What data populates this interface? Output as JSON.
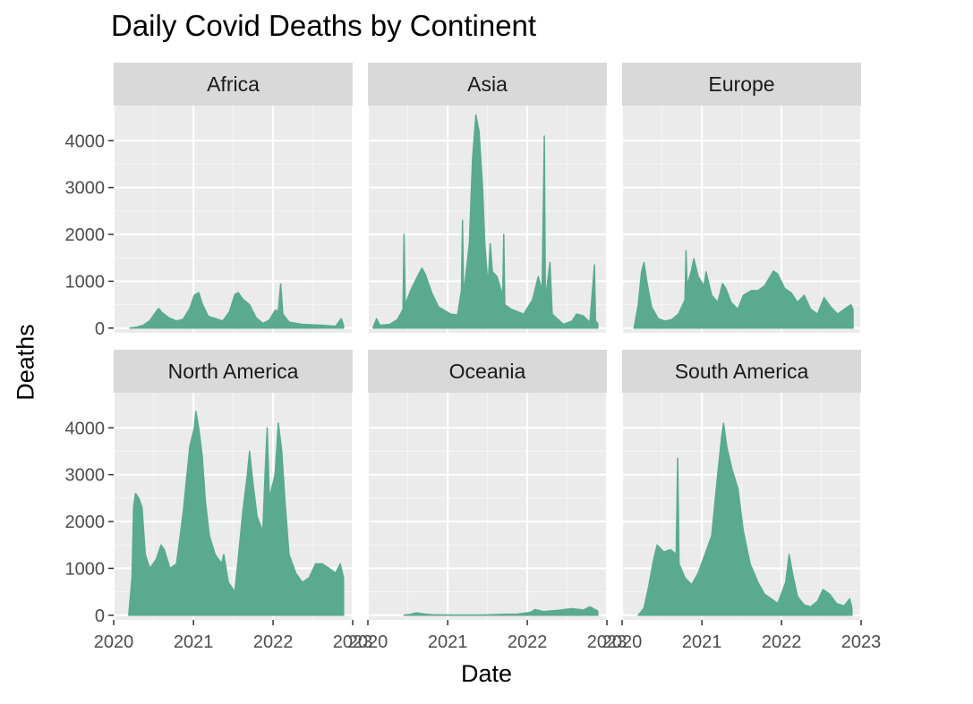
{
  "chart_data": {
    "type": "area",
    "title": "Daily Covid Deaths by Continent",
    "xlabel": "Date",
    "ylabel": "Deaths",
    "x_tick_labels": [
      "2020",
      "2021",
      "2022",
      "2023"
    ],
    "y_tick_labels": [
      "0",
      "1000",
      "2000",
      "3000",
      "4000"
    ],
    "xlim": [
      "2020-01-01",
      "2023-01-01"
    ],
    "ylim": [
      -100,
      4750
    ],
    "grid": true,
    "fill_color": "#5aaa90",
    "panels": [
      {
        "name": "Africa",
        "series": [
          {
            "x": "2020-03-15",
            "y": 0
          },
          {
            "x": "2020-04-15",
            "y": 20
          },
          {
            "x": "2020-05-15",
            "y": 60
          },
          {
            "x": "2020-06-15",
            "y": 160
          },
          {
            "x": "2020-07-10",
            "y": 330
          },
          {
            "x": "2020-07-25",
            "y": 420
          },
          {
            "x": "2020-08-10",
            "y": 330
          },
          {
            "x": "2020-09-10",
            "y": 220
          },
          {
            "x": "2020-10-15",
            "y": 150
          },
          {
            "x": "2020-11-15",
            "y": 190
          },
          {
            "x": "2020-12-15",
            "y": 420
          },
          {
            "x": "2021-01-05",
            "y": 700
          },
          {
            "x": "2021-01-25",
            "y": 760
          },
          {
            "x": "2021-02-10",
            "y": 520
          },
          {
            "x": "2021-03-10",
            "y": 250
          },
          {
            "x": "2021-04-15",
            "y": 200
          },
          {
            "x": "2021-05-15",
            "y": 150
          },
          {
            "x": "2021-06-15",
            "y": 350
          },
          {
            "x": "2021-07-10",
            "y": 720
          },
          {
            "x": "2021-07-25",
            "y": 760
          },
          {
            "x": "2021-08-15",
            "y": 620
          },
          {
            "x": "2021-09-15",
            "y": 500
          },
          {
            "x": "2021-10-15",
            "y": 220
          },
          {
            "x": "2021-11-15",
            "y": 100
          },
          {
            "x": "2021-12-15",
            "y": 170
          },
          {
            "x": "2022-01-10",
            "y": 380
          },
          {
            "x": "2022-01-25",
            "y": 370
          },
          {
            "x": "2022-02-05",
            "y": 940
          },
          {
            "x": "2022-02-15",
            "y": 300
          },
          {
            "x": "2022-03-15",
            "y": 130
          },
          {
            "x": "2022-05-15",
            "y": 80
          },
          {
            "x": "2022-08-15",
            "y": 60
          },
          {
            "x": "2022-10-15",
            "y": 40
          },
          {
            "x": "2022-11-10",
            "y": 200
          },
          {
            "x": "2022-11-20",
            "y": 60
          }
        ]
      },
      {
        "name": "Asia",
        "series": [
          {
            "x": "2020-01-25",
            "y": 10
          },
          {
            "x": "2020-02-10",
            "y": 200
          },
          {
            "x": "2020-02-25",
            "y": 60
          },
          {
            "x": "2020-04-10",
            "y": 80
          },
          {
            "x": "2020-05-15",
            "y": 180
          },
          {
            "x": "2020-06-10",
            "y": 400
          },
          {
            "x": "2020-06-15",
            "y": 2000
          },
          {
            "x": "2020-06-20",
            "y": 500
          },
          {
            "x": "2020-07-15",
            "y": 800
          },
          {
            "x": "2020-08-15",
            "y": 1100
          },
          {
            "x": "2020-09-05",
            "y": 1280
          },
          {
            "x": "2020-09-20",
            "y": 1150
          },
          {
            "x": "2020-10-20",
            "y": 750
          },
          {
            "x": "2020-11-20",
            "y": 450
          },
          {
            "x": "2021-01-15",
            "y": 300
          },
          {
            "x": "2021-02-15",
            "y": 280
          },
          {
            "x": "2021-03-05",
            "y": 800
          },
          {
            "x": "2021-03-10",
            "y": 2300
          },
          {
            "x": "2021-03-15",
            "y": 700
          },
          {
            "x": "2021-04-10",
            "y": 1800
          },
          {
            "x": "2021-04-25",
            "y": 3600
          },
          {
            "x": "2021-05-10",
            "y": 4550
          },
          {
            "x": "2021-05-25",
            "y": 4200
          },
          {
            "x": "2021-06-10",
            "y": 3000
          },
          {
            "x": "2021-06-20",
            "y": 1800
          },
          {
            "x": "2021-07-05",
            "y": 900
          },
          {
            "x": "2021-07-15",
            "y": 1800
          },
          {
            "x": "2021-07-25",
            "y": 1200
          },
          {
            "x": "2021-08-15",
            "y": 1100
          },
          {
            "x": "2021-09-10",
            "y": 700
          },
          {
            "x": "2021-09-15",
            "y": 2000
          },
          {
            "x": "2021-09-20",
            "y": 500
          },
          {
            "x": "2021-10-20",
            "y": 400
          },
          {
            "x": "2021-12-15",
            "y": 300
          },
          {
            "x": "2022-01-25",
            "y": 600
          },
          {
            "x": "2022-02-20",
            "y": 1100
          },
          {
            "x": "2022-03-10",
            "y": 800
          },
          {
            "x": "2022-03-20",
            "y": 4100
          },
          {
            "x": "2022-03-25",
            "y": 600
          },
          {
            "x": "2022-04-15",
            "y": 1400
          },
          {
            "x": "2022-04-25",
            "y": 300
          },
          {
            "x": "2022-06-15",
            "y": 80
          },
          {
            "x": "2022-07-25",
            "y": 150
          },
          {
            "x": "2022-08-15",
            "y": 300
          },
          {
            "x": "2022-09-15",
            "y": 260
          },
          {
            "x": "2022-10-15",
            "y": 120
          },
          {
            "x": "2022-11-05",
            "y": 1350
          },
          {
            "x": "2022-11-10",
            "y": 150
          },
          {
            "x": "2022-11-20",
            "y": 100
          }
        ]
      },
      {
        "name": "Europe",
        "series": [
          {
            "x": "2020-02-25",
            "y": 10
          },
          {
            "x": "2020-03-15",
            "y": 500
          },
          {
            "x": "2020-03-30",
            "y": 1200
          },
          {
            "x": "2020-04-10",
            "y": 1400
          },
          {
            "x": "2020-04-25",
            "y": 950
          },
          {
            "x": "2020-05-15",
            "y": 450
          },
          {
            "x": "2020-06-15",
            "y": 200
          },
          {
            "x": "2020-07-15",
            "y": 150
          },
          {
            "x": "2020-08-15",
            "y": 180
          },
          {
            "x": "2020-09-15",
            "y": 300
          },
          {
            "x": "2020-10-15",
            "y": 600
          },
          {
            "x": "2020-10-20",
            "y": 1650
          },
          {
            "x": "2020-10-25",
            "y": 900
          },
          {
            "x": "2020-11-15",
            "y": 1250
          },
          {
            "x": "2020-11-25",
            "y": 1480
          },
          {
            "x": "2020-12-15",
            "y": 1100
          },
          {
            "x": "2021-01-10",
            "y": 900
          },
          {
            "x": "2021-01-20",
            "y": 1200
          },
          {
            "x": "2021-02-15",
            "y": 700
          },
          {
            "x": "2021-03-15",
            "y": 550
          },
          {
            "x": "2021-04-05",
            "y": 950
          },
          {
            "x": "2021-04-20",
            "y": 850
          },
          {
            "x": "2021-05-15",
            "y": 550
          },
          {
            "x": "2021-06-15",
            "y": 400
          },
          {
            "x": "2021-07-10",
            "y": 700
          },
          {
            "x": "2021-08-15",
            "y": 800
          },
          {
            "x": "2021-09-15",
            "y": 800
          },
          {
            "x": "2021-10-15",
            "y": 900
          },
          {
            "x": "2021-11-10",
            "y": 1100
          },
          {
            "x": "2021-11-25",
            "y": 1220
          },
          {
            "x": "2021-12-15",
            "y": 1150
          },
          {
            "x": "2022-01-15",
            "y": 850
          },
          {
            "x": "2022-02-15",
            "y": 750
          },
          {
            "x": "2022-03-15",
            "y": 550
          },
          {
            "x": "2022-04-15",
            "y": 700
          },
          {
            "x": "2022-05-15",
            "y": 400
          },
          {
            "x": "2022-06-15",
            "y": 300
          },
          {
            "x": "2022-07-15",
            "y": 650
          },
          {
            "x": "2022-08-15",
            "y": 450
          },
          {
            "x": "2022-09-15",
            "y": 300
          },
          {
            "x": "2022-10-15",
            "y": 400
          },
          {
            "x": "2022-11-15",
            "y": 500
          },
          {
            "x": "2022-11-25",
            "y": 400
          }
        ]
      },
      {
        "name": "North America",
        "series": [
          {
            "x": "2020-03-10",
            "y": 0
          },
          {
            "x": "2020-03-25",
            "y": 800
          },
          {
            "x": "2020-04-01",
            "y": 2300
          },
          {
            "x": "2020-04-10",
            "y": 2600
          },
          {
            "x": "2020-04-25",
            "y": 2500
          },
          {
            "x": "2020-05-10",
            "y": 2300
          },
          {
            "x": "2020-05-25",
            "y": 1300
          },
          {
            "x": "2020-06-15",
            "y": 1000
          },
          {
            "x": "2020-07-15",
            "y": 1200
          },
          {
            "x": "2020-08-05",
            "y": 1500
          },
          {
            "x": "2020-08-20",
            "y": 1400
          },
          {
            "x": "2020-09-15",
            "y": 1000
          },
          {
            "x": "2020-10-15",
            "y": 1100
          },
          {
            "x": "2020-11-15",
            "y": 2200
          },
          {
            "x": "2020-12-15",
            "y": 3600
          },
          {
            "x": "2021-01-05",
            "y": 4000
          },
          {
            "x": "2021-01-12",
            "y": 4350
          },
          {
            "x": "2021-01-25",
            "y": 4000
          },
          {
            "x": "2021-02-10",
            "y": 3400
          },
          {
            "x": "2021-02-25",
            "y": 2400
          },
          {
            "x": "2021-03-15",
            "y": 1700
          },
          {
            "x": "2021-04-10",
            "y": 1300
          },
          {
            "x": "2021-05-10",
            "y": 1100
          },
          {
            "x": "2021-05-20",
            "y": 1300
          },
          {
            "x": "2021-06-10",
            "y": 700
          },
          {
            "x": "2021-07-10",
            "y": 500
          },
          {
            "x": "2021-07-25",
            "y": 1200
          },
          {
            "x": "2021-08-15",
            "y": 2200
          },
          {
            "x": "2021-09-05",
            "y": 3000
          },
          {
            "x": "2021-09-15",
            "y": 3500
          },
          {
            "x": "2021-10-01",
            "y": 2800
          },
          {
            "x": "2021-10-20",
            "y": 2100
          },
          {
            "x": "2021-11-15",
            "y": 1800
          },
          {
            "x": "2021-11-25",
            "y": 3000
          },
          {
            "x": "2021-12-05",
            "y": 4000
          },
          {
            "x": "2021-12-15",
            "y": 2500
          },
          {
            "x": "2022-01-10",
            "y": 3000
          },
          {
            "x": "2022-01-25",
            "y": 4100
          },
          {
            "x": "2022-02-10",
            "y": 3500
          },
          {
            "x": "2022-02-25",
            "y": 2400
          },
          {
            "x": "2022-03-15",
            "y": 1300
          },
          {
            "x": "2022-04-15",
            "y": 900
          },
          {
            "x": "2022-05-15",
            "y": 700
          },
          {
            "x": "2022-06-15",
            "y": 800
          },
          {
            "x": "2022-07-15",
            "y": 1100
          },
          {
            "x": "2022-08-15",
            "y": 1100
          },
          {
            "x": "2022-09-15",
            "y": 1000
          },
          {
            "x": "2022-10-15",
            "y": 900
          },
          {
            "x": "2022-11-05",
            "y": 1100
          },
          {
            "x": "2022-11-20",
            "y": 800
          }
        ]
      },
      {
        "name": "Oceania",
        "series": [
          {
            "x": "2020-06-15",
            "y": 0
          },
          {
            "x": "2020-07-15",
            "y": 20
          },
          {
            "x": "2020-08-10",
            "y": 50
          },
          {
            "x": "2020-09-10",
            "y": 30
          },
          {
            "x": "2020-10-20",
            "y": 10
          },
          {
            "x": "2021-01-15",
            "y": 5
          },
          {
            "x": "2021-06-15",
            "y": 5
          },
          {
            "x": "2021-09-15",
            "y": 20
          },
          {
            "x": "2021-11-15",
            "y": 25
          },
          {
            "x": "2022-01-15",
            "y": 60
          },
          {
            "x": "2022-02-05",
            "y": 120
          },
          {
            "x": "2022-03-15",
            "y": 80
          },
          {
            "x": "2022-05-15",
            "y": 100
          },
          {
            "x": "2022-07-25",
            "y": 140
          },
          {
            "x": "2022-09-15",
            "y": 110
          },
          {
            "x": "2022-10-15",
            "y": 180
          },
          {
            "x": "2022-11-20",
            "y": 90
          }
        ]
      },
      {
        "name": "South America",
        "series": [
          {
            "x": "2020-03-15",
            "y": 0
          },
          {
            "x": "2020-04-10",
            "y": 150
          },
          {
            "x": "2020-05-01",
            "y": 600
          },
          {
            "x": "2020-05-25",
            "y": 1200
          },
          {
            "x": "2020-06-10",
            "y": 1500
          },
          {
            "x": "2020-07-10",
            "y": 1350
          },
          {
            "x": "2020-08-10",
            "y": 1400
          },
          {
            "x": "2020-09-05",
            "y": 1300
          },
          {
            "x": "2020-09-12",
            "y": 3350
          },
          {
            "x": "2020-09-18",
            "y": 1100
          },
          {
            "x": "2020-10-15",
            "y": 800
          },
          {
            "x": "2020-11-15",
            "y": 650
          },
          {
            "x": "2020-12-15",
            "y": 900
          },
          {
            "x": "2021-01-15",
            "y": 1300
          },
          {
            "x": "2021-02-15",
            "y": 1700
          },
          {
            "x": "2021-03-10",
            "y": 2800
          },
          {
            "x": "2021-04-01",
            "y": 3800
          },
          {
            "x": "2021-04-10",
            "y": 4100
          },
          {
            "x": "2021-04-25",
            "y": 3600
          },
          {
            "x": "2021-05-20",
            "y": 3100
          },
          {
            "x": "2021-06-15",
            "y": 2700
          },
          {
            "x": "2021-07-10",
            "y": 1800
          },
          {
            "x": "2021-08-10",
            "y": 1100
          },
          {
            "x": "2021-09-15",
            "y": 700
          },
          {
            "x": "2021-10-15",
            "y": 450
          },
          {
            "x": "2021-11-15",
            "y": 350
          },
          {
            "x": "2021-12-15",
            "y": 250
          },
          {
            "x": "2022-01-20",
            "y": 700
          },
          {
            "x": "2022-02-05",
            "y": 1300
          },
          {
            "x": "2022-02-20",
            "y": 900
          },
          {
            "x": "2022-03-15",
            "y": 400
          },
          {
            "x": "2022-04-15",
            "y": 220
          },
          {
            "x": "2022-05-15",
            "y": 180
          },
          {
            "x": "2022-06-15",
            "y": 300
          },
          {
            "x": "2022-07-10",
            "y": 550
          },
          {
            "x": "2022-08-10",
            "y": 450
          },
          {
            "x": "2022-09-10",
            "y": 250
          },
          {
            "x": "2022-10-15",
            "y": 200
          },
          {
            "x": "2022-11-10",
            "y": 350
          },
          {
            "x": "2022-11-20",
            "y": 150
          }
        ]
      }
    ]
  }
}
